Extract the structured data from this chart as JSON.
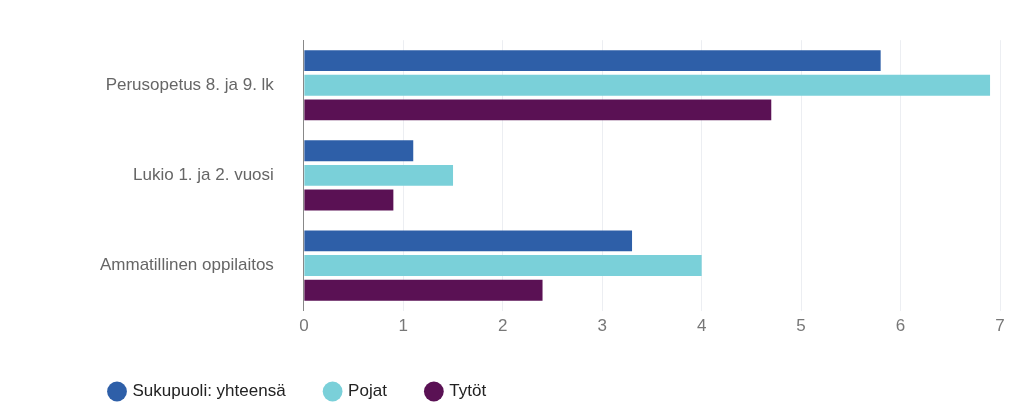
{
  "chart_data": {
    "type": "bar",
    "orientation": "horizontal",
    "categories": [
      "Perusopetus 8. ja 9. lk",
      "Lukio 1. ja 2. vuosi",
      "Ammatillinen oppilaitos"
    ],
    "series": [
      {
        "name": "Sukupuoli: yhteensä",
        "color": "#2e5fa8",
        "values": [
          5.8,
          1.1,
          3.3
        ]
      },
      {
        "name": "Pojat",
        "color": "#7ad0d9",
        "values": [
          6.9,
          1.5,
          4.0
        ]
      },
      {
        "name": "Tytöt",
        "color": "#5a1154",
        "values": [
          4.7,
          0.9,
          2.4
        ]
      }
    ],
    "xlim": [
      0,
      7
    ],
    "xticks": [
      0,
      1,
      2,
      3,
      4,
      5,
      6,
      7
    ],
    "grid": "x",
    "legend": "bottom left"
  }
}
